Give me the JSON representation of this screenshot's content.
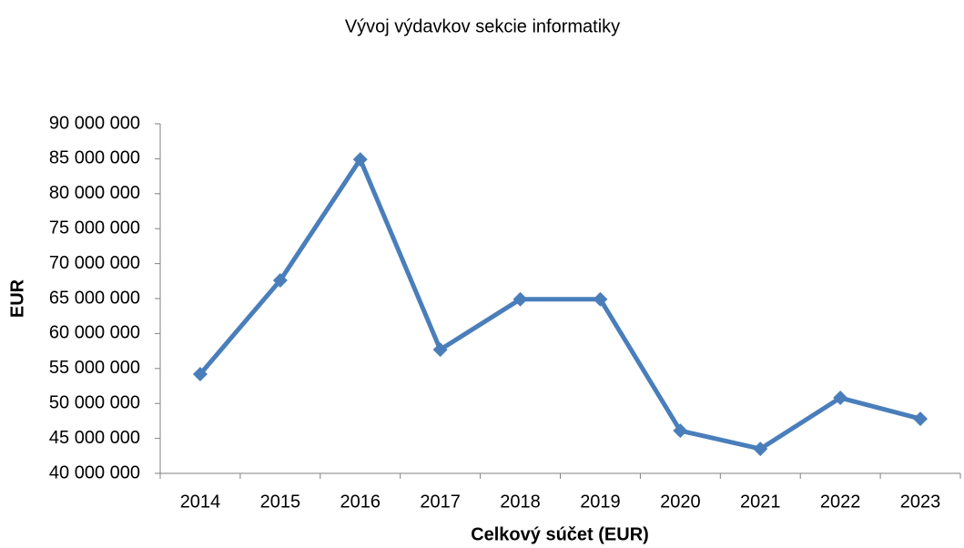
{
  "chart_data": {
    "type": "line",
    "title": "Vývoj výdavkov sekcie informatiky",
    "x_label": "Celkový súčet (EUR)",
    "y_label": "EUR",
    "categories": [
      "2014",
      "2015",
      "2016",
      "2017",
      "2018",
      "2019",
      "2020",
      "2021",
      "2022",
      "2023"
    ],
    "series": [
      {
        "color": "#4a7ebb",
        "values": [
          54200000,
          67600000,
          84900000,
          57700000,
          64900000,
          64900000,
          46100000,
          43500000,
          50800000,
          47800000
        ]
      }
    ],
    "ylim": [
      40000000,
      90000000
    ],
    "yticks": [
      {
        "value": 40000000,
        "label": "40 000 000"
      },
      {
        "value": 45000000,
        "label": "45 000 000"
      },
      {
        "value": 50000000,
        "label": "50 000 000"
      },
      {
        "value": 55000000,
        "label": "55 000 000"
      },
      {
        "value": 60000000,
        "label": "60 000 000"
      },
      {
        "value": 65000000,
        "label": "65 000 000"
      },
      {
        "value": 70000000,
        "label": "70 000 000"
      },
      {
        "value": 75000000,
        "label": "75 000 000"
      },
      {
        "value": 80000000,
        "label": "80 000 000"
      },
      {
        "value": 85000000,
        "label": "85 000 000"
      },
      {
        "value": 90000000,
        "label": "90 000 000"
      }
    ],
    "grid": false
  }
}
